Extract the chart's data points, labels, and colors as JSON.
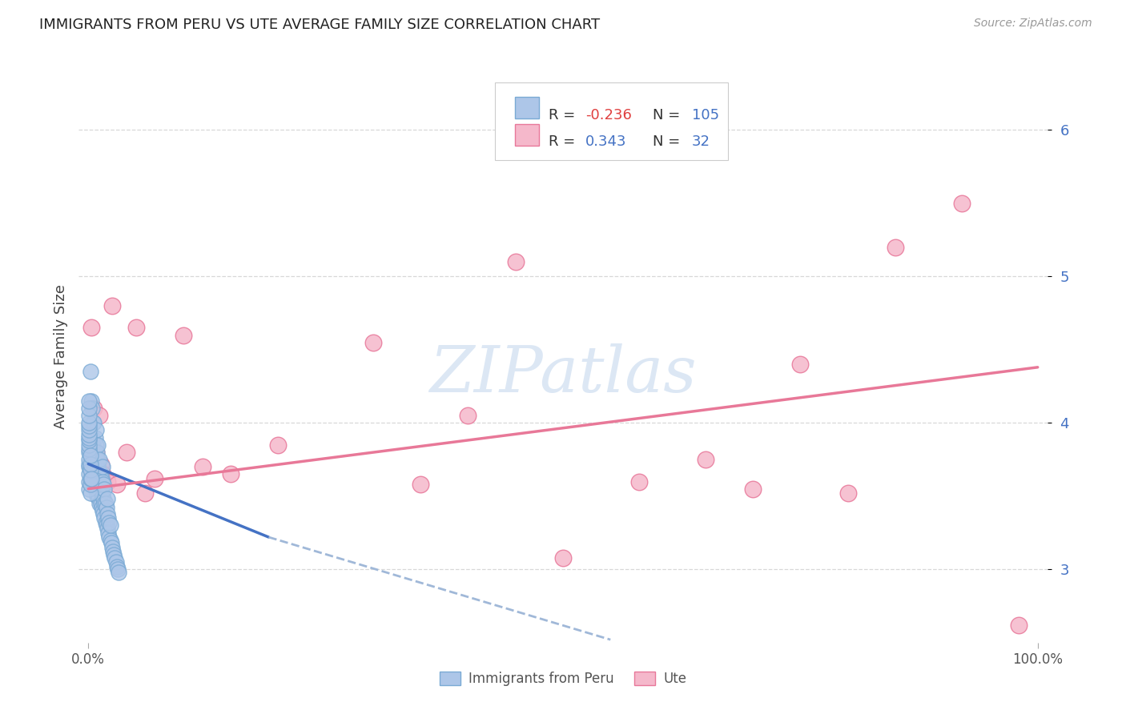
{
  "title": "IMMIGRANTS FROM PERU VS UTE AVERAGE FAMILY SIZE CORRELATION CHART",
  "source": "Source: ZipAtlas.com",
  "ylabel": "Average Family Size",
  "watermark": "ZIPatlas",
  "r_peru": -0.236,
  "n_peru": 105,
  "r_ute": 0.343,
  "n_ute": 32,
  "ylim": [
    2.5,
    6.4
  ],
  "xlim": [
    -0.01,
    1.01
  ],
  "yticks": [
    3.0,
    4.0,
    5.0,
    6.0
  ],
  "background_color": "#ffffff",
  "grid_color": "#d8d8d8",
  "peru_color_face": "#adc6e8",
  "peru_color_edge": "#7aaad4",
  "ute_color_face": "#f5b8cb",
  "ute_color_edge": "#e8789a",
  "peru_line_color": "#4472c4",
  "peru_dash_color": "#a0b8d8",
  "ute_line_color": "#e87898",
  "peru_scatter_x": [
    0.002,
    0.002,
    0.003,
    0.003,
    0.003,
    0.003,
    0.004,
    0.004,
    0.004,
    0.005,
    0.005,
    0.005,
    0.005,
    0.006,
    0.006,
    0.006,
    0.006,
    0.007,
    0.007,
    0.007,
    0.007,
    0.008,
    0.008,
    0.008,
    0.008,
    0.008,
    0.009,
    0.009,
    0.009,
    0.009,
    0.01,
    0.01,
    0.01,
    0.01,
    0.01,
    0.01,
    0.011,
    0.011,
    0.011,
    0.012,
    0.012,
    0.012,
    0.012,
    0.013,
    0.013,
    0.013,
    0.014,
    0.014,
    0.014,
    0.015,
    0.015,
    0.015,
    0.015,
    0.016,
    0.016,
    0.016,
    0.017,
    0.017,
    0.017,
    0.018,
    0.018,
    0.019,
    0.019,
    0.02,
    0.02,
    0.02,
    0.021,
    0.021,
    0.022,
    0.022,
    0.023,
    0.023,
    0.024,
    0.025,
    0.026,
    0.027,
    0.028,
    0.029,
    0.03,
    0.031,
    0.032,
    0.001,
    0.001,
    0.001,
    0.001,
    0.001,
    0.001,
    0.001,
    0.001,
    0.001,
    0.001,
    0.001,
    0.001,
    0.001,
    0.001,
    0.001,
    0.001,
    0.001,
    0.001,
    0.002,
    0.002,
    0.002,
    0.002,
    0.002,
    0.002,
    0.003
  ],
  "peru_scatter_y": [
    3.8,
    4.35,
    3.65,
    3.75,
    3.85,
    4.15,
    3.7,
    3.9,
    4.1,
    3.6,
    3.75,
    3.85,
    4.0,
    3.6,
    3.7,
    3.8,
    4.0,
    3.55,
    3.65,
    3.75,
    3.9,
    3.55,
    3.65,
    3.75,
    3.85,
    3.95,
    3.5,
    3.6,
    3.7,
    3.8,
    3.5,
    3.55,
    3.6,
    3.7,
    3.75,
    3.85,
    3.5,
    3.58,
    3.68,
    3.45,
    3.55,
    3.65,
    3.75,
    3.45,
    3.55,
    3.65,
    3.42,
    3.52,
    3.62,
    3.4,
    3.5,
    3.6,
    3.7,
    3.38,
    3.48,
    3.58,
    3.35,
    3.45,
    3.55,
    3.32,
    3.45,
    3.3,
    3.42,
    3.28,
    3.38,
    3.48,
    3.25,
    3.35,
    3.22,
    3.32,
    3.2,
    3.3,
    3.18,
    3.15,
    3.12,
    3.1,
    3.08,
    3.05,
    3.02,
    3.0,
    2.98,
    3.55,
    3.6,
    3.65,
    3.7,
    3.72,
    3.75,
    3.8,
    3.82,
    3.85,
    3.88,
    3.9,
    3.92,
    3.95,
    3.98,
    4.0,
    4.05,
    4.1,
    4.15,
    3.52,
    3.58,
    3.62,
    3.68,
    3.72,
    3.78,
    3.62
  ],
  "ute_scatter_x": [
    0.003,
    0.006,
    0.008,
    0.01,
    0.012,
    0.013,
    0.015,
    0.017,
    0.02,
    0.025,
    0.03,
    0.04,
    0.05,
    0.06,
    0.07,
    0.1,
    0.12,
    0.15,
    0.2,
    0.3,
    0.35,
    0.4,
    0.45,
    0.5,
    0.58,
    0.65,
    0.7,
    0.75,
    0.8,
    0.85,
    0.92,
    0.98
  ],
  "ute_scatter_y": [
    4.65,
    4.1,
    3.8,
    3.7,
    4.05,
    3.72,
    3.65,
    3.6,
    3.6,
    4.8,
    3.58,
    3.8,
    4.65,
    3.52,
    3.62,
    4.6,
    3.7,
    3.65,
    3.85,
    4.55,
    3.58,
    4.05,
    5.1,
    3.08,
    3.6,
    3.75,
    3.55,
    4.4,
    3.52,
    5.2,
    5.5,
    2.62
  ],
  "peru_solid_line_x": [
    0.0,
    0.19
  ],
  "peru_solid_line_y": [
    3.72,
    3.22
  ],
  "peru_dash_line_x": [
    0.19,
    0.55
  ],
  "peru_dash_line_y": [
    3.22,
    2.52
  ],
  "ute_line_x": [
    0.0,
    1.0
  ],
  "ute_line_y": [
    3.55,
    4.38
  ]
}
